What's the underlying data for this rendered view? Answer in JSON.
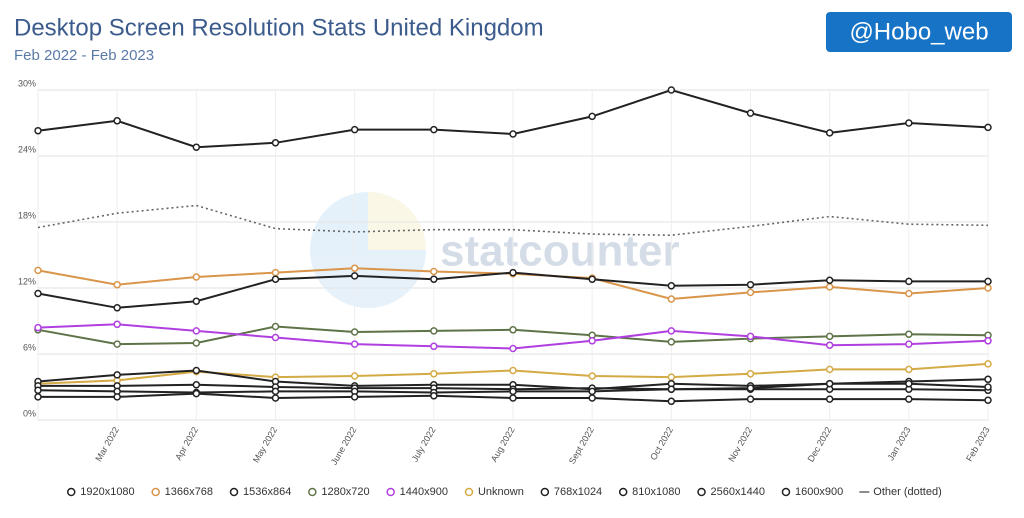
{
  "chart_data": {
    "type": "line",
    "title": "Desktop Screen Resolution Stats United Kingdom",
    "subtitle": "Feb 2022 - Feb 2023",
    "badge": "@Hobo_web",
    "watermark": "statcounter",
    "categories": [
      null,
      "Mar 2022",
      "Apr 2022",
      "May 2022",
      "June 2022",
      "July 2022",
      "Aug 2022",
      "Sept 2022",
      "Oct 2022",
      "Nov 2022",
      "Dec 2022",
      "Jan 2023",
      "Feb 2023"
    ],
    "ylim": [
      0,
      30
    ],
    "yticks": [
      {
        "value": 0,
        "label": "0%"
      },
      {
        "value": 6,
        "label": "6%"
      },
      {
        "value": 12,
        "label": "12%"
      },
      {
        "value": 18,
        "label": "18%"
      },
      {
        "value": 24,
        "label": "24%"
      },
      {
        "value": 30,
        "label": "30%"
      }
    ],
    "grid": true,
    "legend": "bottom",
    "series": [
      {
        "name": "1920x1080",
        "color": "#222222",
        "values": [
          26.3,
          27.2,
          24.8,
          25.2,
          26.4,
          26.4,
          26.0,
          27.6,
          30.0,
          27.9,
          26.1,
          27.0,
          26.6
        ]
      },
      {
        "name": "1366x768",
        "color": "#d9954a",
        "values": [
          13.6,
          12.3,
          13.0,
          13.4,
          13.8,
          13.5,
          13.3,
          12.9,
          11.0,
          11.6,
          12.1,
          11.5,
          12.0
        ]
      },
      {
        "name": "1536x864",
        "color": "#222222",
        "values": [
          11.5,
          10.2,
          10.8,
          12.8,
          13.1,
          12.8,
          13.4,
          12.8,
          12.2,
          12.3,
          12.7,
          12.6,
          12.6
        ]
      },
      {
        "name": "1280x720",
        "color": "#5f7348",
        "values": [
          8.2,
          6.9,
          7.0,
          8.5,
          8.0,
          8.1,
          8.2,
          7.7,
          7.1,
          7.4,
          7.6,
          7.8,
          7.7
        ]
      },
      {
        "name": "1440x900",
        "color": "#b03fe0",
        "values": [
          8.4,
          8.7,
          8.1,
          7.5,
          6.9,
          6.7,
          6.5,
          7.2,
          8.1,
          7.6,
          6.8,
          6.9,
          7.2
        ]
      },
      {
        "name": "Unknown",
        "color": "#d4aa45",
        "values": [
          3.3,
          3.6,
          4.4,
          3.9,
          4.0,
          4.2,
          4.5,
          4.0,
          3.9,
          4.2,
          4.6,
          4.6,
          5.1
        ]
      },
      {
        "name": "768x1024",
        "color": "#222222",
        "values": [
          3.5,
          4.1,
          4.5,
          3.5,
          3.1,
          3.2,
          3.2,
          2.8,
          3.3,
          3.1,
          3.3,
          3.5,
          3.7
        ]
      },
      {
        "name": "810x1080",
        "color": "#222222",
        "values": [
          3.1,
          3.1,
          3.2,
          3.0,
          2.9,
          2.9,
          2.8,
          2.9,
          2.8,
          2.8,
          2.8,
          2.8,
          2.7
        ]
      },
      {
        "name": "2560x1440",
        "color": "#222222",
        "values": [
          2.7,
          2.6,
          2.5,
          2.6,
          2.6,
          2.5,
          2.6,
          2.6,
          2.8,
          2.9,
          3.3,
          3.3,
          3.0
        ]
      },
      {
        "name": "1600x900",
        "color": "#222222",
        "values": [
          2.1,
          2.1,
          2.4,
          2.0,
          2.1,
          2.2,
          2.0,
          2.0,
          1.7,
          1.9,
          1.9,
          1.9,
          1.8
        ]
      },
      {
        "name": "Other (dotted)",
        "color": "#666666",
        "dotted": true,
        "values": [
          17.5,
          18.8,
          19.5,
          17.4,
          17.1,
          17.3,
          17.3,
          16.9,
          16.8,
          17.6,
          18.5,
          17.8,
          17.7
        ]
      }
    ]
  }
}
